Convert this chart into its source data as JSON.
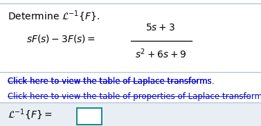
{
  "bg_color": "#e8eef4",
  "content_bg": "#ffffff",
  "link1": "Click here to view the table of Laplace transforms.",
  "link2": "Click here to view the table of properties of Laplace transforms.",
  "link_color": "#0000cc",
  "text_color": "#000000",
  "box_color": "#008080",
  "font_size_title": 10,
  "font_size_eq": 10,
  "font_size_link": 8.5,
  "font_size_answer": 10,
  "divider_color": "#aabccc"
}
